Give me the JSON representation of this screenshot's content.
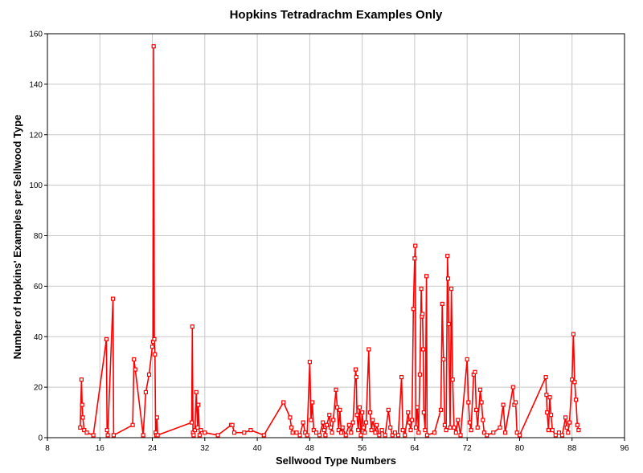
{
  "chart_data": {
    "type": "line",
    "title": "Hopkins Tetradrachm Examples Only",
    "xlabel": "Sellwood Type Numbers",
    "ylabel": "Number of Hopkins' Examples per Sellwood Type",
    "xlim": [
      8,
      96
    ],
    "ylim": [
      0,
      160
    ],
    "x_ticks": [
      8,
      16,
      24,
      32,
      40,
      48,
      56,
      64,
      72,
      80,
      88,
      96
    ],
    "y_ticks": [
      0,
      20,
      40,
      60,
      80,
      100,
      120,
      140,
      160
    ],
    "grid": true,
    "legend": "none",
    "series_color": "#ff0000",
    "series": [
      {
        "points": [
          [
            13.0,
            4
          ],
          [
            13.2,
            23
          ],
          [
            13.3,
            13
          ],
          [
            13.4,
            8
          ],
          [
            13.6,
            3
          ],
          [
            14.0,
            2
          ],
          [
            15.0,
            1
          ],
          [
            17.0,
            39
          ],
          [
            17.1,
            3
          ],
          [
            17.2,
            1
          ],
          [
            18.0,
            55
          ],
          [
            18.1,
            1
          ],
          [
            21.0,
            5
          ],
          [
            21.2,
            31
          ],
          [
            21.4,
            27
          ],
          [
            22.6,
            1
          ],
          [
            23.0,
            18
          ],
          [
            23.5,
            25
          ],
          [
            24.0,
            36
          ],
          [
            24.1,
            38
          ],
          [
            24.2,
            155
          ],
          [
            24.3,
            39
          ],
          [
            24.4,
            33
          ],
          [
            24.5,
            2
          ],
          [
            24.6,
            1
          ],
          [
            24.7,
            8
          ],
          [
            24.8,
            1
          ],
          [
            30.0,
            6
          ],
          [
            30.1,
            44
          ],
          [
            30.2,
            2
          ],
          [
            30.3,
            1
          ],
          [
            30.5,
            3
          ],
          [
            30.7,
            18
          ],
          [
            30.9,
            4
          ],
          [
            31.0,
            13
          ],
          [
            31.2,
            1
          ],
          [
            31.4,
            3
          ],
          [
            32.0,
            2
          ],
          [
            34.0,
            1
          ],
          [
            36.0,
            5
          ],
          [
            36.2,
            5
          ],
          [
            36.5,
            2
          ],
          [
            38.0,
            2
          ],
          [
            39.0,
            3
          ],
          [
            41.0,
            1
          ],
          [
            44.0,
            14
          ],
          [
            45.0,
            8
          ],
          [
            45.2,
            4
          ],
          [
            45.4,
            2
          ],
          [
            46.0,
            2
          ],
          [
            46.5,
            1
          ],
          [
            47.0,
            6
          ],
          [
            47.3,
            2
          ],
          [
            47.6,
            1
          ],
          [
            48.0,
            30
          ],
          [
            48.2,
            7
          ],
          [
            48.4,
            14
          ],
          [
            48.6,
            3
          ],
          [
            49.0,
            2
          ],
          [
            49.5,
            1
          ],
          [
            50.0,
            6
          ],
          [
            50.2,
            3
          ],
          [
            50.4,
            1
          ],
          [
            50.6,
            5
          ],
          [
            51.0,
            9
          ],
          [
            51.2,
            4
          ],
          [
            51.4,
            2
          ],
          [
            51.6,
            7
          ],
          [
            52.0,
            19
          ],
          [
            52.2,
            12
          ],
          [
            52.4,
            3
          ],
          [
            52.6,
            11
          ],
          [
            52.8,
            2
          ],
          [
            53.0,
            4
          ],
          [
            53.5,
            1
          ],
          [
            54.0,
            5
          ],
          [
            54.3,
            2
          ],
          [
            54.6,
            6
          ],
          [
            55.0,
            27
          ],
          [
            55.1,
            24
          ],
          [
            55.2,
            9
          ],
          [
            55.4,
            3
          ],
          [
            55.6,
            12
          ],
          [
            55.8,
            1
          ],
          [
            56.0,
            10
          ],
          [
            56.2,
            4
          ],
          [
            56.4,
            2
          ],
          [
            56.6,
            6
          ],
          [
            57.0,
            35
          ],
          [
            57.2,
            10
          ],
          [
            57.4,
            3
          ],
          [
            57.6,
            7
          ],
          [
            58.0,
            2
          ],
          [
            58.2,
            5
          ],
          [
            58.6,
            1
          ],
          [
            59.0,
            3
          ],
          [
            59.5,
            1
          ],
          [
            60.0,
            11
          ],
          [
            60.3,
            4
          ],
          [
            60.6,
            1
          ],
          [
            61.0,
            2
          ],
          [
            61.5,
            1
          ],
          [
            62.0,
            24
          ],
          [
            62.2,
            3
          ],
          [
            62.5,
            1
          ],
          [
            63.0,
            10
          ],
          [
            63.2,
            6
          ],
          [
            63.4,
            3
          ],
          [
            63.6,
            7
          ],
          [
            63.8,
            51
          ],
          [
            64.0,
            71
          ],
          [
            64.1,
            76
          ],
          [
            64.2,
            4
          ],
          [
            64.4,
            12
          ],
          [
            64.6,
            2
          ],
          [
            64.8,
            25
          ],
          [
            65.0,
            59
          ],
          [
            65.1,
            48
          ],
          [
            65.2,
            49
          ],
          [
            65.3,
            35
          ],
          [
            65.4,
            10
          ],
          [
            65.6,
            3
          ],
          [
            65.8,
            64
          ],
          [
            65.9,
            1
          ],
          [
            67.0,
            2
          ],
          [
            68.0,
            11
          ],
          [
            68.2,
            53
          ],
          [
            68.4,
            31
          ],
          [
            68.6,
            5
          ],
          [
            68.8,
            3
          ],
          [
            69.0,
            72
          ],
          [
            69.1,
            63
          ],
          [
            69.2,
            45
          ],
          [
            69.4,
            4
          ],
          [
            69.6,
            59
          ],
          [
            69.8,
            23
          ],
          [
            70.0,
            4
          ],
          [
            70.3,
            2
          ],
          [
            70.6,
            7
          ],
          [
            71.0,
            1
          ],
          [
            72.0,
            31
          ],
          [
            72.2,
            14
          ],
          [
            72.4,
            6
          ],
          [
            72.6,
            3
          ],
          [
            73.0,
            25
          ],
          [
            73.2,
            26
          ],
          [
            73.4,
            11
          ],
          [
            73.6,
            4
          ],
          [
            74.0,
            19
          ],
          [
            74.2,
            14
          ],
          [
            74.4,
            7
          ],
          [
            74.6,
            2
          ],
          [
            75.0,
            1
          ],
          [
            76.0,
            2
          ],
          [
            77.0,
            4
          ],
          [
            77.5,
            13
          ],
          [
            77.8,
            2
          ],
          [
            79.0,
            20
          ],
          [
            79.2,
            13
          ],
          [
            79.4,
            14
          ],
          [
            79.6,
            2
          ],
          [
            80.0,
            1
          ],
          [
            84.0,
            24
          ],
          [
            84.1,
            17
          ],
          [
            84.2,
            10
          ],
          [
            84.4,
            3
          ],
          [
            84.6,
            16
          ],
          [
            84.8,
            9
          ],
          [
            85.0,
            3
          ],
          [
            85.5,
            1
          ],
          [
            86.0,
            2
          ],
          [
            86.5,
            1
          ],
          [
            87.0,
            8
          ],
          [
            87.2,
            4
          ],
          [
            87.4,
            2
          ],
          [
            87.6,
            6
          ],
          [
            88.0,
            23
          ],
          [
            88.2,
            41
          ],
          [
            88.4,
            22
          ],
          [
            88.6,
            15
          ],
          [
            88.8,
            5
          ],
          [
            89.0,
            3
          ]
        ]
      }
    ]
  }
}
